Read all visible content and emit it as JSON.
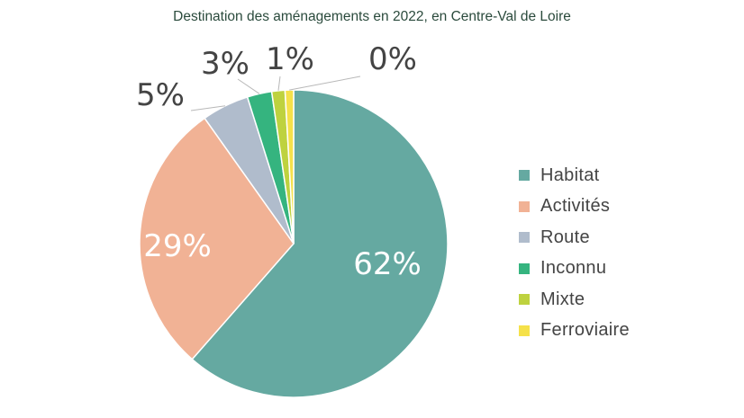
{
  "chart_data": {
    "type": "pie",
    "title": "Destination des aménagements en 2022, en Centre-Val de Loire",
    "categories": [
      "Habitat",
      "Activités",
      "Route",
      "Inconnu",
      "Mixte",
      "Ferroviaire"
    ],
    "values": [
      62,
      29,
      5,
      3,
      1,
      0
    ],
    "value_labels": [
      "62%",
      "29%",
      "5%",
      "3%",
      "1%",
      "0%"
    ],
    "colors": [
      "#65a9a1",
      "#f1b295",
      "#b0bccc",
      "#35b47f",
      "#bed23f",
      "#f5e14a"
    ],
    "legend_position": "right"
  }
}
